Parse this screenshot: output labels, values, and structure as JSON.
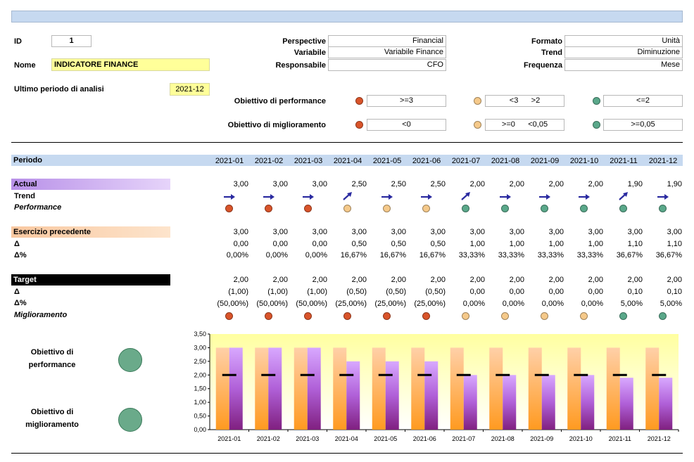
{
  "colors": {
    "red": "#d9542a",
    "yellow": "#f5c98a",
    "green": "#5aa88a",
    "big_circle": "#6aaa8a",
    "title_bar": "#c6d9f0",
    "periodo_bar": "#c6d9f0",
    "actual_bar": "#c9a0f0",
    "esercizio_bar": "#fbd4b0",
    "target_bar": "#000000",
    "arrow": "#2a2aa0"
  },
  "form": {
    "id_label": "ID",
    "id_value": "1",
    "nome_label": "Nome",
    "nome_value": "INDICATORE FINANCE",
    "ultimo_label": "Ultimo periodo di analisi",
    "ultimo_value": "2021-12",
    "perspective_label": "Perspective",
    "perspective_value": "Financial",
    "variabile_label": "Variabile",
    "variabile_value": "Variabile Finance",
    "responsabile_label": "Responsabile",
    "responsabile_value": "CFO",
    "formato_label": "Formato",
    "formato_value": "Unità",
    "trend_label": "Trend",
    "trend_value": "Diminuzione",
    "frequenza_label": "Frequenza",
    "frequenza_value": "Mese",
    "obj_perf_label": "Obiettivo di performance",
    "obj_perf_red": ">=3",
    "obj_perf_yellow": "<3      >2",
    "obj_perf_green": "<=2",
    "obj_migl_label": "Obiettivo di miglioramento",
    "obj_migl_red": "<0",
    "obj_migl_yellow": ">=0      <0,05",
    "obj_migl_green": ">=0,05"
  },
  "table": {
    "periodo_label": "Periodo",
    "periods": [
      "2021-01",
      "2021-02",
      "2021-03",
      "2021-04",
      "2021-05",
      "2021-06",
      "2021-07",
      "2021-08",
      "2021-09",
      "2021-10",
      "2021-11",
      "2021-12"
    ],
    "actual_label": "Actual",
    "actual": [
      "3,00",
      "3,00",
      "3,00",
      "2,50",
      "2,50",
      "2,50",
      "2,00",
      "2,00",
      "2,00",
      "2,00",
      "1,90",
      "1,90"
    ],
    "trend_label": "Trend",
    "trend": [
      "flat",
      "flat",
      "flat",
      "up",
      "flat",
      "flat",
      "up",
      "flat",
      "flat",
      "flat",
      "up",
      "flat"
    ],
    "performance_label": "Performance",
    "performance": [
      "red",
      "red",
      "red",
      "yellow",
      "yellow",
      "yellow",
      "green",
      "green",
      "green",
      "green",
      "green",
      "green"
    ],
    "esercizio_label": "Esercizio precedente",
    "esercizio": [
      "3,00",
      "3,00",
      "3,00",
      "3,00",
      "3,00",
      "3,00",
      "3,00",
      "3,00",
      "3,00",
      "3,00",
      "3,00",
      "3,00"
    ],
    "delta_label": "Δ",
    "esercizio_delta": [
      "0,00",
      "0,00",
      "0,00",
      "0,50",
      "0,50",
      "0,50",
      "1,00",
      "1,00",
      "1,00",
      "1,00",
      "1,10",
      "1,10"
    ],
    "deltapct_label": "Δ%",
    "esercizio_deltapct": [
      "0,00%",
      "0,00%",
      "0,00%",
      "16,67%",
      "16,67%",
      "16,67%",
      "33,33%",
      "33,33%",
      "33,33%",
      "33,33%",
      "36,67%",
      "36,67%"
    ],
    "target_label": "Target",
    "target": [
      "2,00",
      "2,00",
      "2,00",
      "2,00",
      "2,00",
      "2,00",
      "2,00",
      "2,00",
      "2,00",
      "2,00",
      "2,00",
      "2,00"
    ],
    "target_delta": [
      "(1,00)",
      "(1,00)",
      "(1,00)",
      "(0,50)",
      "(0,50)",
      "(0,50)",
      "0,00",
      "0,00",
      "0,00",
      "0,00",
      "0,10",
      "0,10"
    ],
    "target_deltapct": [
      "(50,00%)",
      "(50,00%)",
      "(50,00%)",
      "(25,00%)",
      "(25,00%)",
      "(25,00%)",
      "0,00%",
      "0,00%",
      "0,00%",
      "0,00%",
      "5,00%",
      "5,00%"
    ],
    "miglioramento_label": "Miglioramento",
    "miglioramento": [
      "red",
      "red",
      "red",
      "red",
      "red",
      "red",
      "yellow",
      "yellow",
      "yellow",
      "yellow",
      "green",
      "green"
    ]
  },
  "summary": {
    "perf_label_1": "Obiettivo di",
    "perf_label_2": "performance",
    "migl_label_1": "Obiettivo di",
    "migl_label_2": "miglioramento"
  },
  "chart_data": {
    "type": "bar",
    "categories": [
      "2021-01",
      "2021-02",
      "2021-03",
      "2021-04",
      "2021-05",
      "2021-06",
      "2021-07",
      "2021-08",
      "2021-09",
      "2021-10",
      "2021-11",
      "2021-12"
    ],
    "series": [
      {
        "values": [
          3.0,
          3.0,
          3.0,
          3.0,
          3.0,
          3.0,
          3.0,
          3.0,
          3.0,
          3.0,
          3.0,
          3.0
        ],
        "color": "#ffa040"
      },
      {
        "values": [
          3.0,
          3.0,
          3.0,
          2.5,
          2.5,
          2.5,
          2.0,
          2.0,
          2.0,
          2.0,
          1.9,
          1.9
        ],
        "color": "#a040c0"
      },
      {
        "values": [
          2.0,
          2.0,
          2.0,
          2.0,
          2.0,
          2.0,
          2.0,
          2.0,
          2.0,
          2.0,
          2.0,
          2.0
        ],
        "color": "#000000",
        "style": "marker-dash"
      }
    ],
    "ylim": [
      0,
      3.5
    ],
    "yticks": [
      "0,00",
      "0,50",
      "1,00",
      "1,50",
      "2,00",
      "2,50",
      "3,00",
      "3,50"
    ],
    "grid": false
  }
}
